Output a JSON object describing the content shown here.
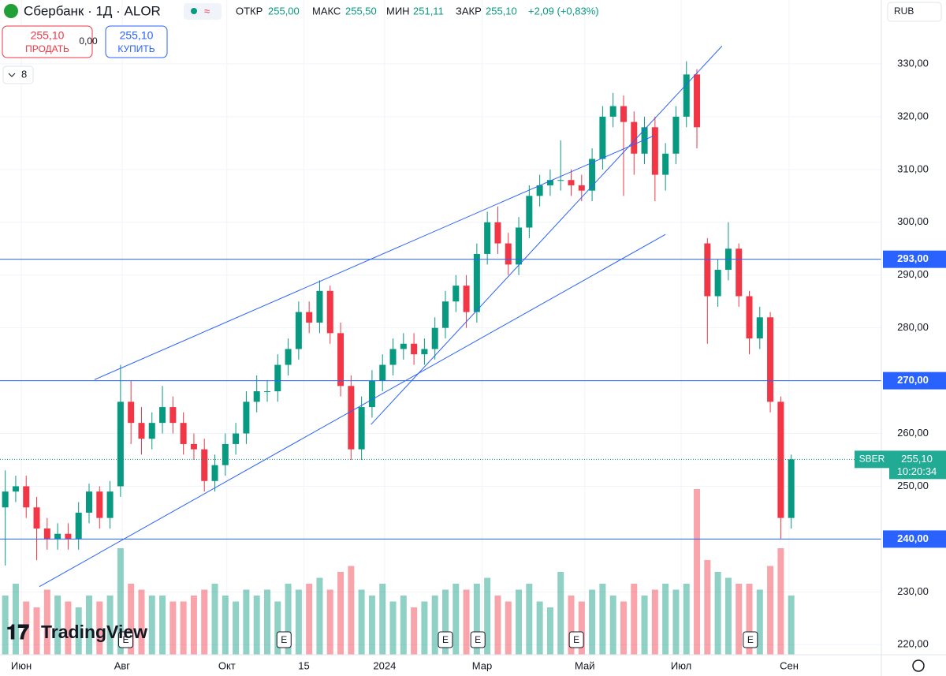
{
  "header": {
    "symbol": "Сбербанк · 1Д · ALOR",
    "open_label": "ОТКР",
    "open": "255,00",
    "high_label": "МАКС",
    "high": "255,50",
    "low_label": "МИН",
    "low": "251,11",
    "close_label": "ЗАКР",
    "close": "255,10",
    "change": "+2,09 (+0,83%)",
    "sell_price": "255,10",
    "sell": "ПРОДАТЬ",
    "spread": "0,00",
    "buy_price": "255,10",
    "buy": "КУПИТЬ",
    "indicators": "8",
    "currency": "RUB",
    "logo": "TradingView"
  },
  "chart_data": {
    "type": "candlestick",
    "up_color": "#089981",
    "down_color": "#f23645",
    "open": [
      246,
      249,
      250,
      246,
      242,
      240,
      241,
      240,
      245,
      249,
      244,
      250,
      266,
      262,
      259,
      262,
      265,
      262,
      258,
      257,
      251,
      254,
      258,
      260,
      266,
      268,
      268,
      273,
      276,
      283,
      281,
      287,
      279,
      269,
      257,
      265,
      270,
      273,
      276,
      277,
      275,
      276,
      280,
      285,
      288,
      283,
      294,
      300,
      296,
      292,
      299,
      305,
      307,
      308,
      308,
      307,
      306,
      312,
      320,
      322,
      319,
      313,
      318,
      309,
      313,
      320,
      328,
      296,
      286,
      291,
      295,
      286,
      278,
      282,
      266,
      244
    ],
    "high": [
      253,
      252,
      252,
      248,
      244,
      243,
      243,
      247,
      250.5,
      250,
      251,
      273,
      270,
      265,
      264,
      269,
      267,
      264,
      260,
      259,
      256,
      260,
      262,
      268,
      271,
      270,
      275,
      278,
      285,
      285,
      289,
      288,
      281,
      271,
      267,
      272,
      275,
      278,
      279,
      279,
      278,
      282,
      287,
      290,
      290,
      296,
      302,
      303,
      298,
      301,
      307,
      309,
      310,
      315.5,
      310,
      309,
      314,
      322,
      324.5,
      324,
      321,
      320,
      320,
      315,
      322,
      330.5,
      329,
      297,
      293,
      300,
      296,
      287,
      284,
      283,
      267,
      256
    ],
    "low": [
      235,
      247,
      244,
      236,
      238,
      238,
      238,
      238,
      243,
      242,
      242,
      248,
      258,
      256,
      257,
      260,
      260,
      256,
      255,
      249,
      249,
      252,
      256,
      258,
      264,
      266,
      266,
      271,
      274,
      279,
      279,
      277,
      267,
      255,
      255,
      263,
      268,
      271,
      274,
      273,
      273,
      274,
      278,
      283,
      280,
      281,
      292,
      294,
      290,
      290,
      297,
      303,
      305,
      306,
      305,
      304,
      304,
      310,
      318,
      305,
      309,
      311,
      304,
      306,
      311,
      318,
      314,
      277,
      284,
      289,
      284,
      275,
      276,
      264,
      240,
      242
    ],
    "close": [
      249,
      250,
      246,
      242,
      240,
      241,
      240,
      245,
      249,
      244,
      249,
      266,
      262,
      259,
      262,
      265,
      262,
      258,
      257,
      251,
      254,
      258,
      260,
      266,
      268,
      268,
      273,
      276,
      283,
      281,
      287,
      279,
      269,
      257,
      265,
      270,
      273,
      276,
      277,
      275,
      276,
      280,
      285,
      288,
      283,
      294,
      300,
      296,
      292,
      299,
      305,
      307,
      308,
      308,
      307,
      306,
      312,
      320,
      322,
      319,
      313,
      318,
      309,
      313,
      320,
      328,
      318,
      286,
      291,
      295,
      286,
      278,
      282,
      266,
      244,
      255.1
    ],
    "volume": [
      50,
      60,
      45,
      40,
      55,
      50,
      45,
      40,
      50,
      45,
      50,
      90,
      60,
      55,
      50,
      50,
      45,
      45,
      50,
      55,
      60,
      50,
      45,
      55,
      50,
      55,
      45,
      60,
      55,
      60,
      65,
      55,
      70,
      75,
      55,
      50,
      60,
      45,
      50,
      40,
      45,
      50,
      55,
      60,
      55,
      60,
      65,
      50,
      45,
      55,
      60,
      45,
      40,
      70,
      50,
      45,
      55,
      60,
      50,
      45,
      60,
      50,
      55,
      60,
      55,
      60,
      140,
      80,
      70,
      65,
      60,
      60,
      55,
      75,
      90,
      50
    ],
    "xlim": [
      -0.5,
      83.6
    ],
    "ylim": [
      218.1,
      342.1
    ],
    "yticks": [
      {
        "value": 220,
        "label": "220,00"
      },
      {
        "value": 230,
        "label": "230,00"
      },
      {
        "value": 240,
        "label": "240,00"
      },
      {
        "value": 250,
        "label": "250,00"
      },
      {
        "value": 260,
        "label": "260,00"
      },
      {
        "value": 270,
        "label": "270,00"
      },
      {
        "value": 280,
        "label": "280,00"
      },
      {
        "value": 290,
        "label": "290,00"
      },
      {
        "value": 300,
        "label": "300,00"
      },
      {
        "value": 310,
        "label": "310,00"
      },
      {
        "value": 320,
        "label": "320,00"
      },
      {
        "value": 330,
        "label": "330,00"
      }
    ],
    "xticks": [
      {
        "value": 1.53,
        "label": "Июн"
      },
      {
        "value": 11.15,
        "label": "Авг"
      },
      {
        "value": 21.15,
        "label": "Окт"
      },
      {
        "value": 28.5,
        "label": "15"
      },
      {
        "value": 36.2,
        "label": "2024"
      },
      {
        "value": 45.5,
        "label": "Мар"
      },
      {
        "value": 55.3,
        "label": "Май"
      },
      {
        "value": 64.5,
        "label": "Июл"
      },
      {
        "value": 74.8,
        "label": "Сен"
      }
    ],
    "grid": true,
    "hlines": [
      {
        "value": 293,
        "label": "293,00"
      },
      {
        "value": 270,
        "label": "270,00"
      },
      {
        "value": 240,
        "label": "240,00"
      }
    ],
    "last": {
      "value": 255.1,
      "label": "255,10",
      "symbol": "SBER",
      "time": "10:20:34"
    },
    "trendlines": [
      {
        "x": [
          8.52,
          61.9
        ],
        "y": [
          270.2,
          316.4
        ]
      },
      {
        "x": [
          3.26,
          63.0
        ],
        "y": [
          231.0,
          297.7
        ]
      },
      {
        "x": [
          34.9,
          68.4
        ],
        "y": [
          261.7,
          333.4
        ]
      }
    ],
    "events": [
      {
        "x": 11.5,
        "label": "E"
      },
      {
        "x": 26.6,
        "label": "E"
      },
      {
        "x": 42,
        "label": "E"
      },
      {
        "x": 45.1,
        "label": "E"
      },
      {
        "x": 54.5,
        "label": "E"
      },
      {
        "x": 71.1,
        "label": "E"
      }
    ]
  }
}
